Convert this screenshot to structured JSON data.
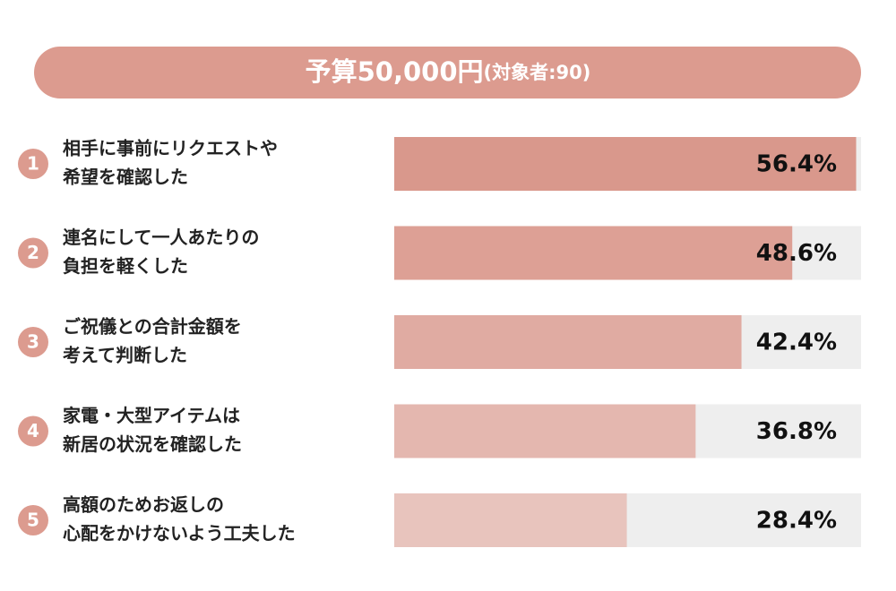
{
  "chart_data": {
    "type": "bar",
    "orientation": "horizontal",
    "title": "予算50,000円",
    "subtitle": "(対象者:90)",
    "ranks": [
      1,
      2,
      3,
      4,
      5
    ],
    "categories": [
      [
        "相手に事前にリクエストや",
        "希望を確認した"
      ],
      [
        "連名にして一人あたりの",
        "負担を軽くした"
      ],
      [
        "ご祝儀との合計金額を",
        "考えて判断した"
      ],
      [
        "家電・大型アイテムは",
        "新居の状況を確認した"
      ],
      [
        "高額のためお返しの",
        "心配をかけないよう工夫した"
      ]
    ],
    "values": [
      56.4,
      48.6,
      42.4,
      36.8,
      28.4
    ],
    "value_labels": [
      "56.4%",
      "48.6%",
      "42.4%",
      "36.8%",
      "28.4%"
    ],
    "colors": [
      "#d9988c",
      "#dda095",
      "#e0aba2",
      "#e4b7af",
      "#e8c4bd"
    ],
    "track_color": "#eeeeee",
    "accent_color": "#dc9b8f",
    "xlim": [
      0,
      57
    ]
  }
}
